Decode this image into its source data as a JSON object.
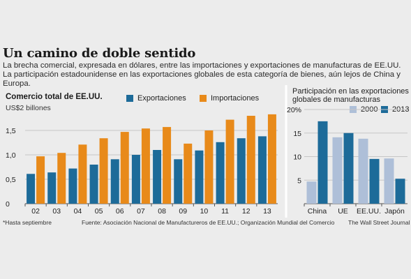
{
  "title": "Un camino de doble sentido",
  "subtitle": "La brecha comercial, expresada en dólares, entre las importaciones y exportaciones de manufacturas de EE.UU. La participación estadounidense en las exportaciones globales de esta categoría de bienes, aún lejos de China y Europa.",
  "footnote": "*Hasta septiembre",
  "source": "Fuente: Asociación Nacional de Manufactureros de EE.UU.; Organización Mundial del Comercio",
  "credit": "The Wall Street Journal",
  "colors": {
    "exports": "#1d6b99",
    "imports": "#e88a1a",
    "y2000": "#aebfd8",
    "y2013": "#1d6b99",
    "grid": "#c6c6c6"
  },
  "chart_data": [
    {
      "type": "bar",
      "title": "Comercio total de EE.UU.",
      "ylabel": "US$2 billones",
      "categories": [
        "02",
        "03",
        "04",
        "05",
        "06",
        "07",
        "08",
        "09",
        "10",
        "11",
        "12",
        "13"
      ],
      "series": [
        {
          "name": "Exportaciones",
          "values": [
            0.61,
            0.64,
            0.72,
            0.8,
            0.91,
            1.0,
            1.1,
            0.91,
            1.09,
            1.26,
            1.34,
            1.38
          ]
        },
        {
          "name": "Importaciones",
          "values": [
            0.97,
            1.04,
            1.21,
            1.34,
            1.47,
            1.54,
            1.57,
            1.23,
            1.5,
            1.72,
            1.8,
            1.83
          ]
        }
      ],
      "yticks": [
        "1,5",
        "1,0",
        "0,5",
        "0"
      ],
      "ylim": [
        0,
        2
      ],
      "grid": true,
      "legend": "top"
    },
    {
      "type": "bar",
      "title": "Participación en las exportaciones globales de manufacturas",
      "categories": [
        "China",
        "UE",
        "EE.UU.",
        "Japón"
      ],
      "series": [
        {
          "name": "2000",
          "values": [
            4.7,
            14.1,
            13.8,
            9.6
          ]
        },
        {
          "name": "2013",
          "values": [
            17.5,
            15.0,
            9.5,
            5.3
          ]
        }
      ],
      "yticks": [
        "20%",
        "15",
        "10",
        "5"
      ],
      "ylim": [
        0,
        20
      ],
      "grid": true,
      "legend": "top"
    }
  ]
}
